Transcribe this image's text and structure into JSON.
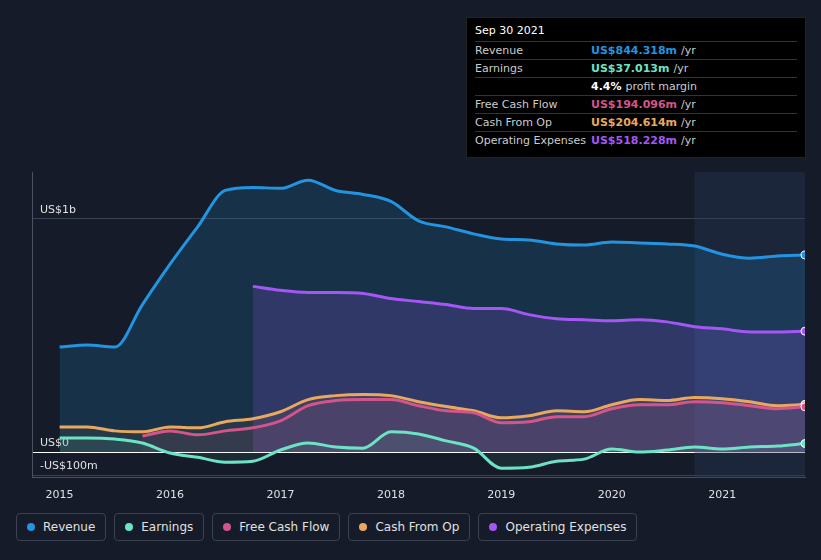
{
  "chart_data": {
    "type": "line",
    "x": [
      2015,
      2015.25,
      2015.5,
      2015.75,
      2016,
      2016.25,
      2016.5,
      2016.75,
      2017,
      2017.25,
      2017.5,
      2017.75,
      2018,
      2018.25,
      2018.5,
      2018.75,
      2019,
      2019.25,
      2019.5,
      2019.75,
      2020,
      2020.25,
      2020.5,
      2020.75,
      2021,
      2021.25,
      2021.5,
      2021.75
    ],
    "xlim": [
      2014.75,
      2021.75
    ],
    "xticks": [
      2015,
      2016,
      2017,
      2018,
      2019,
      2020,
      2021
    ],
    "ylim": [
      -110,
      1200
    ],
    "yticks": [
      {
        "value": -100,
        "label": "-US$100m"
      },
      {
        "value": 0,
        "label": "US$0"
      },
      {
        "value": 1000,
        "label": "US$1b"
      }
    ],
    "grid": true,
    "legend": "bottom",
    "series": [
      {
        "name": "Revenue",
        "color": "#2394df",
        "values": [
          450,
          459,
          450,
          632,
          805,
          965,
          1121,
          1134,
          1130,
          1165,
          1121,
          1104,
          1074,
          991,
          965,
          935,
          913,
          909,
          892,
          887,
          900,
          896,
          892,
          883,
          848,
          831,
          840,
          844.318
        ]
      },
      {
        "name": "Earnings",
        "color": "#6de3c6",
        "values": [
          61,
          61,
          56,
          39,
          -4,
          -22,
          -43,
          -39,
          9,
          39,
          22,
          17,
          87,
          78,
          48,
          17,
          -69,
          -65,
          -39,
          -30,
          13,
          0,
          9,
          22,
          13,
          22,
          26,
          37.013
        ]
      },
      {
        "name": "Free Cash Flow",
        "color": "#d4558a",
        "values": [
          null,
          null,
          null,
          69,
          91,
          74,
          91,
          104,
          134,
          199,
          221,
          225,
          225,
          199,
          177,
          169,
          126,
          130,
          152,
          152,
          186,
          203,
          203,
          216,
          212,
          199,
          186,
          194.096
        ]
      },
      {
        "name": "Cash From Op",
        "color": "#e8a95f",
        "values": [
          108,
          108,
          91,
          87,
          108,
          104,
          130,
          143,
          173,
          225,
          242,
          247,
          242,
          216,
          195,
          177,
          147,
          156,
          177,
          173,
          203,
          225,
          221,
          234,
          229,
          216,
          199,
          204.614
        ]
      },
      {
        "name": "Operating Expenses",
        "color": "#a557f5",
        "values": [
          null,
          null,
          null,
          null,
          null,
          null,
          null,
          710,
          693,
          684,
          684,
          680,
          658,
          645,
          632,
          615,
          615,
          589,
          571,
          567,
          563,
          567,
          558,
          537,
          528,
          515,
          515,
          518.228
        ]
      }
    ],
    "annotations": {
      "title": "Sep 30 2021",
      "rows": [
        {
          "label": "Revenue",
          "value": "US$844.318m",
          "unit": "/yr",
          "color": "#2394df"
        },
        {
          "label": "Earnings",
          "value": "US$37.013m",
          "unit": "/yr",
          "color": "#6de3c6"
        },
        {
          "label": "",
          "value": "4.4%",
          "unit": "profit margin",
          "color": "#ffffff"
        },
        {
          "label": "Free Cash Flow",
          "value": "US$194.096m",
          "unit": "/yr",
          "color": "#d4558a"
        },
        {
          "label": "Cash From Op",
          "value": "US$204.614m",
          "unit": "/yr",
          "color": "#e8a95f"
        },
        {
          "label": "Operating Expenses",
          "value": "US$518.228m",
          "unit": "/yr",
          "color": "#a557f5"
        }
      ]
    }
  }
}
